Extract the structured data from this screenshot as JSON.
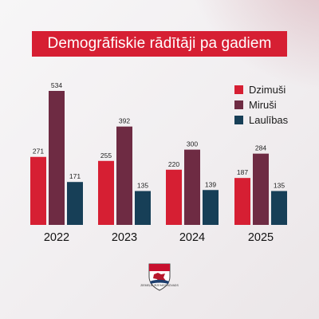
{
  "header": {
    "title": "Demogrāfiskie rādītāji pa gadiem"
  },
  "logo": {
    "name": "municipality-coat-of-arms",
    "text": "ZIEMEĻKURZEMES NOVADS"
  },
  "chart_data": {
    "type": "bar",
    "title": "Demogrāfiskie rādītāji pa gadiem",
    "categories": [
      "2022",
      "2023",
      "2024",
      "2025"
    ],
    "series": [
      {
        "name": "Dzimuši",
        "color": "#d61f33",
        "values": [
          271,
          255,
          220,
          187
        ]
      },
      {
        "name": "Miruši",
        "color": "#6e2b43",
        "values": [
          534,
          392,
          300,
          284
        ]
      },
      {
        "name": "Laulības",
        "color": "#173f57",
        "values": [
          171,
          135,
          139,
          135
        ]
      }
    ],
    "ylim": [
      0,
      534
    ],
    "grid": false,
    "legend_position": "top-right",
    "data_labels": true
  }
}
